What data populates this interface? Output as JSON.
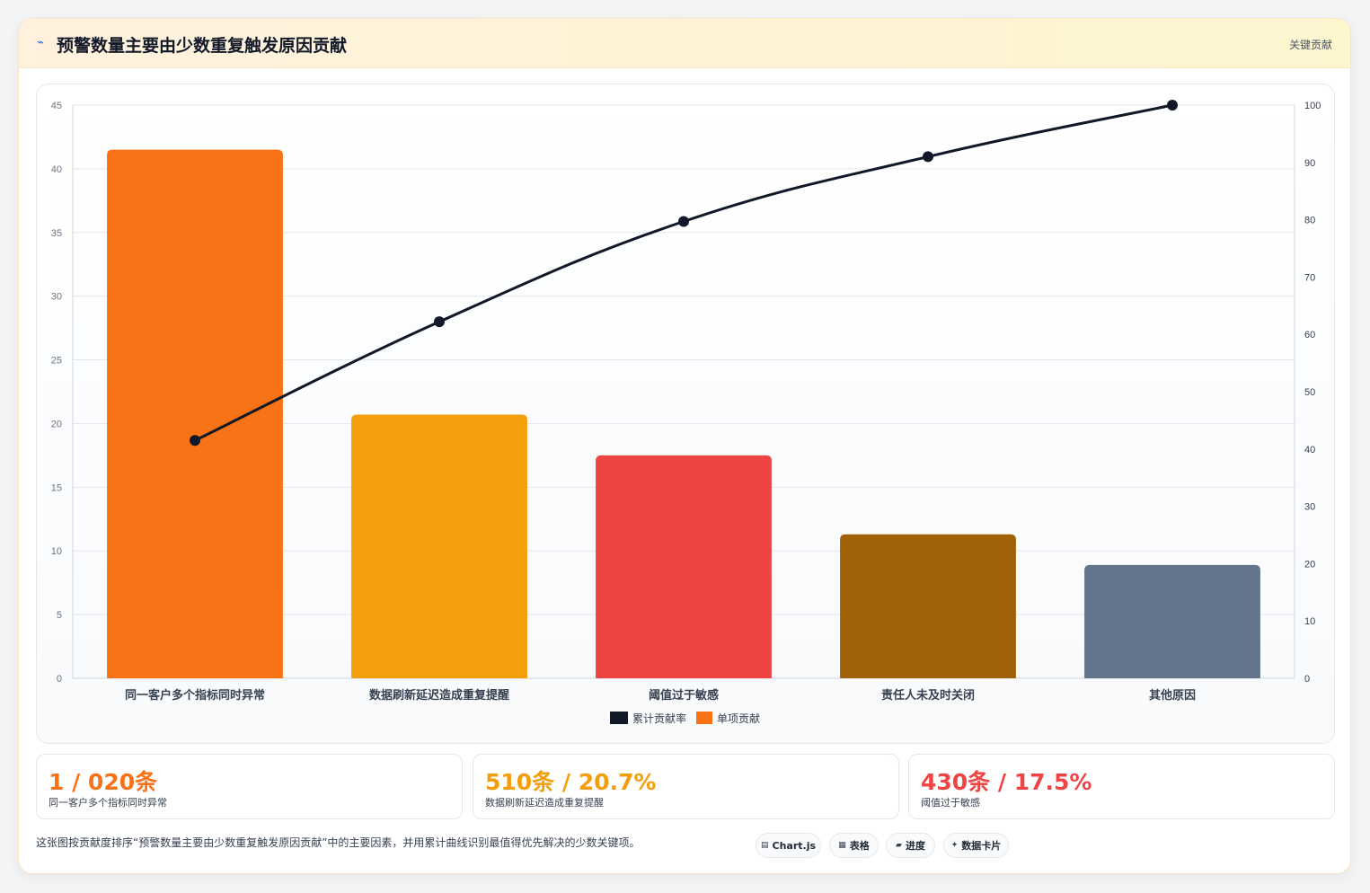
{
  "header": {
    "icon": "lightning-icon",
    "title": "预警数量主要由少数重复触发原因贡献",
    "tag": "关键贡献"
  },
  "chart_data": {
    "type": "bar",
    "categories": [
      "同一客户多个指标同时异常",
      "数据刷新延迟造成重复提醒",
      "阈值过于敏感",
      "责任人未及时关闭",
      "其他原因"
    ],
    "series": [
      {
        "name": "累计贡献率",
        "type": "line",
        "axis": "right",
        "color": "#111827",
        "values": [
          41.5,
          62.2,
          79.7,
          91.0,
          100
        ]
      },
      {
        "name": "单项贡献",
        "type": "bar",
        "axis": "left",
        "color": "#f97316",
        "values": [
          41.5,
          20.7,
          17.5,
          11.3,
          8.9
        ],
        "colors": [
          "#f97316",
          "#f59e0b",
          "#ef4444",
          "#a16207",
          "#64748b"
        ]
      }
    ],
    "ylim": [
      0,
      45
    ],
    "y_ticks": [
      0,
      5,
      10,
      15,
      20,
      25,
      30,
      35,
      40,
      45
    ],
    "y2lim": [
      0,
      100
    ],
    "y2_ticks": [
      0,
      10,
      20,
      30,
      40,
      50,
      60,
      70,
      80,
      90,
      100
    ],
    "grid": true,
    "legend": "bottom"
  },
  "stats": [
    {
      "value": "1 / 020条",
      "label": "同一客户多个指标同时异常",
      "color": "#f97316"
    },
    {
      "value": "510条 / 20.7%",
      "label": "数据刷新延迟造成重复提醒",
      "color": "#f59e0b"
    },
    {
      "value": "430条 / 17.5%",
      "label": "阈值过于敏感",
      "color": "#ef4444"
    }
  ],
  "footnote": "这张图按贡献度排序“预警数量主要由少数重复触发原因贡献”中的主要因素，并用累计曲线识别最值得优先解决的少数关键项。",
  "pills": [
    {
      "icon": "chart-icon",
      "glyph": "▤",
      "label": "Chart.js"
    },
    {
      "icon": "table-icon",
      "glyph": "▦",
      "label": "表格"
    },
    {
      "icon": "progress-icon",
      "glyph": "▰",
      "label": "进度"
    },
    {
      "icon": "sparkle-icon",
      "glyph": "✦",
      "label": "数据卡片"
    }
  ]
}
